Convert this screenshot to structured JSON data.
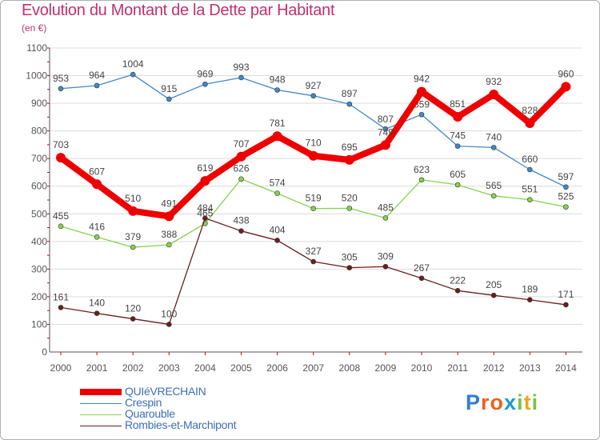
{
  "title": "Evolution du Montant de la Dette par Habitant",
  "unit": "(en €)",
  "brand": "Proxiti",
  "colors": {
    "title": "#c0306f",
    "axis": "#555555",
    "tick_red": "#cc0000",
    "grid": "#dcdcdc",
    "legend_text": "#3b6fb6"
  },
  "chart_data": {
    "type": "line",
    "x": [
      "2000",
      "2001",
      "2002",
      "2003",
      "2004",
      "2005",
      "2006",
      "2007",
      "2008",
      "2009",
      "2010",
      "2011",
      "2012",
      "2013",
      "2014"
    ],
    "ylim": [
      0,
      1100
    ],
    "yticks": [
      0,
      100,
      200,
      300,
      400,
      500,
      600,
      700,
      800,
      900,
      1000,
      1100
    ],
    "grid": true,
    "legend_position": "bottom-left",
    "series": [
      {
        "name": "Crespin",
        "color": "#3f89c9",
        "values": [
          953,
          964,
          1004,
          915,
          969,
          993,
          948,
          927,
          897,
          807,
          859,
          745,
          740,
          660,
          597
        ]
      },
      {
        "name": "Quarouble",
        "color": "#86d24d",
        "values": [
          455,
          416,
          379,
          388,
          465,
          626,
          574,
          519,
          520,
          485,
          623,
          605,
          565,
          551,
          525
        ]
      },
      {
        "name": "Rombies-et-Marchipont",
        "color": "#6b1d1d",
        "values": [
          161,
          140,
          120,
          100,
          484,
          438,
          404,
          327,
          305,
          309,
          267,
          222,
          205,
          189,
          171
        ]
      },
      {
        "name": "QUIéVRECHAIN",
        "color": "#ee0000",
        "values": [
          703,
          607,
          510,
          491,
          619,
          707,
          781,
          710,
          695,
          749,
          942,
          851,
          932,
          828,
          960
        ]
      }
    ],
    "legend_order": [
      "QUIéVRECHAIN",
      "Crespin",
      "Quarouble",
      "Rombies-et-Marchipont"
    ]
  }
}
